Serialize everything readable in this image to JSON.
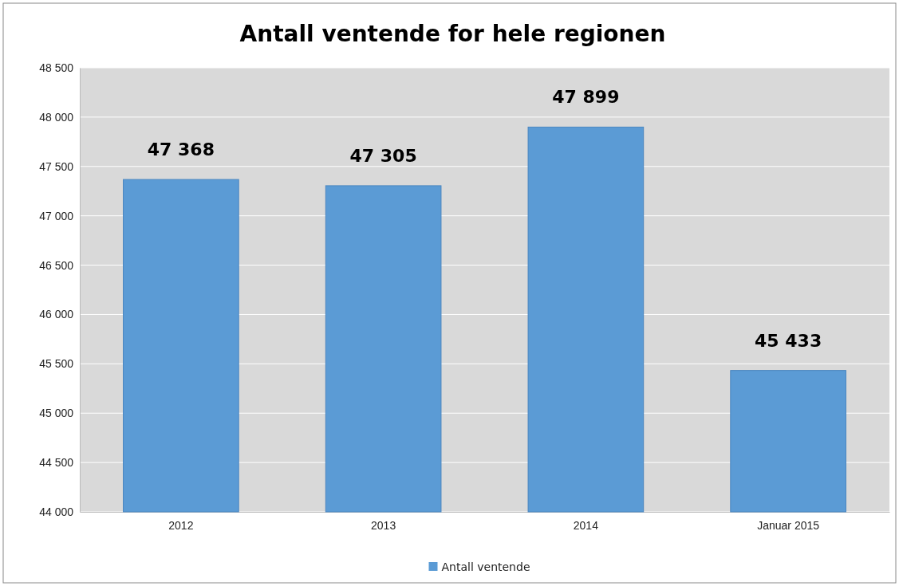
{
  "chart_data": {
    "type": "bar",
    "title": "Antall ventende for hele regionen",
    "categories": [
      "2012",
      "2013",
      "2014",
      "Januar 2015"
    ],
    "series": [
      {
        "name": "Antall ventende",
        "color": "#5b9bd5",
        "values": [
          47368,
          47305,
          47899,
          45433
        ],
        "value_labels": [
          "47 368",
          "47 305",
          "47 899",
          "45 433"
        ]
      }
    ],
    "ylim": [
      44000,
      48500
    ],
    "yticks": [
      {
        "value": 44000,
        "label": "44 000"
      },
      {
        "value": 44500,
        "label": "44 500"
      },
      {
        "value": 45000,
        "label": "45 000"
      },
      {
        "value": 45500,
        "label": "45 500"
      },
      {
        "value": 46000,
        "label": "46 000"
      },
      {
        "value": 46500,
        "label": "46 500"
      },
      {
        "value": 47000,
        "label": "47 000"
      },
      {
        "value": 47500,
        "label": "47 500"
      },
      {
        "value": 48000,
        "label": "48 000"
      },
      {
        "value": 48500,
        "label": "48 500"
      }
    ],
    "grid": "y",
    "legend": "bottom"
  }
}
